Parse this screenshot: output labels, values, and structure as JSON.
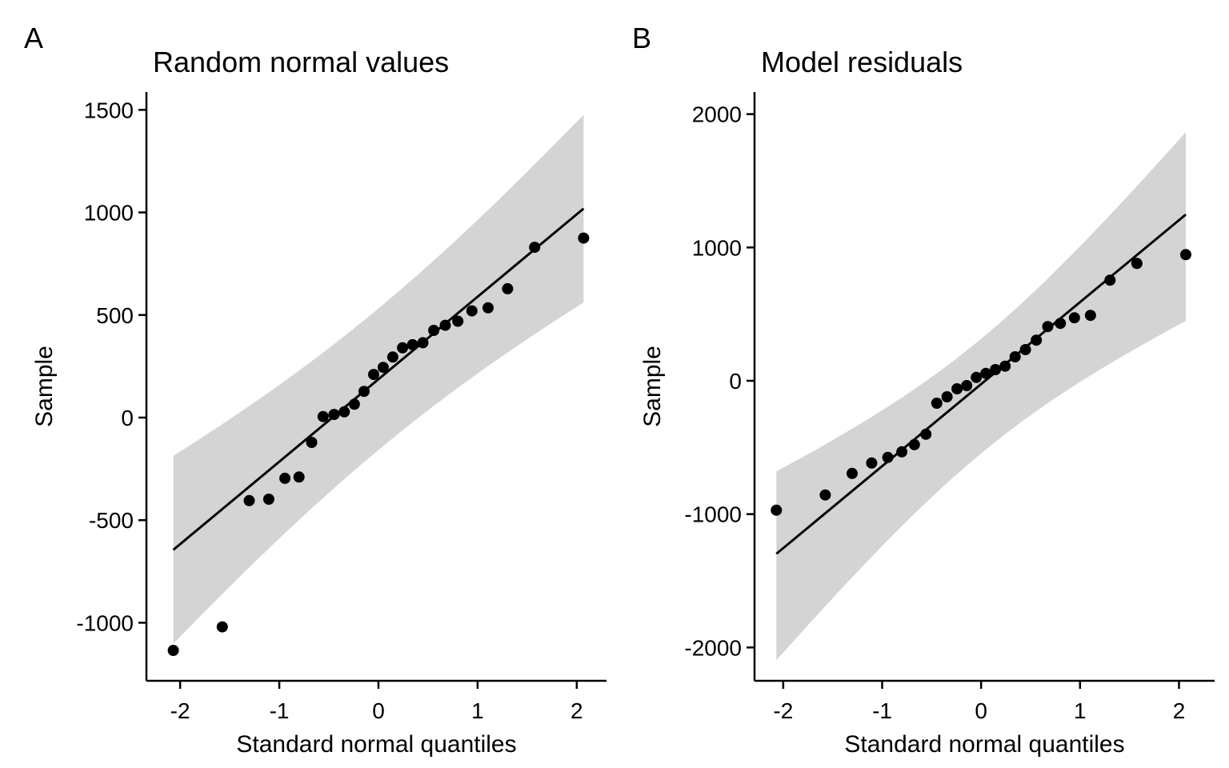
{
  "figure": {
    "background": "#ffffff"
  },
  "colors": {
    "band": "#d4d4d4",
    "line": "#000000",
    "point": "#000000",
    "axis": "#000000",
    "text": "#000000"
  },
  "shared": {
    "xlabel": "Standard normal quantiles",
    "ylabel": "Sample"
  },
  "chart_data": [
    {
      "type": "scatter",
      "tag": "A",
      "title": "Random normal values",
      "xlabel": "Standard normal quantiles",
      "ylabel": "Sample",
      "xlim": [
        -2.34,
        2.3
      ],
      "ylim": [
        -1283,
        1587
      ],
      "x_ticks": [
        {
          "value": -2,
          "label": "-2"
        },
        {
          "value": -1,
          "label": "-1"
        },
        {
          "value": 0,
          "label": "0"
        },
        {
          "value": 1,
          "label": "1"
        },
        {
          "value": 2,
          "label": "2"
        }
      ],
      "y_ticks": [
        {
          "value": 1500,
          "label": "1500"
        },
        {
          "value": 1000,
          "label": "1000"
        },
        {
          "value": 500,
          "label": "500"
        },
        {
          "value": 0,
          "label": "0"
        },
        {
          "value": -500,
          "label": "-500"
        },
        {
          "value": -1000,
          "label": "-1000"
        }
      ],
      "points": {
        "x": [
          -2.069,
          -1.575,
          -1.303,
          -1.106,
          -0.943,
          -0.801,
          -0.674,
          -0.558,
          -0.448,
          -0.344,
          -0.243,
          -0.145,
          -0.048,
          0.048,
          0.145,
          0.243,
          0.344,
          0.448,
          0.558,
          0.674,
          0.801,
          0.943,
          1.106,
          1.303,
          1.575,
          2.069
        ],
        "y": [
          -1135,
          -1020,
          -405,
          -398,
          -296,
          -290,
          -121,
          5,
          15,
          28,
          65,
          128,
          210,
          245,
          295,
          340,
          355,
          365,
          425,
          450,
          470,
          520,
          535,
          628,
          830,
          875
        ]
      },
      "qq_line": {
        "intercept": 187,
        "slope": 402,
        "q_min": -2.069,
        "q_max": 2.069
      },
      "band": {
        "half_width_at_0": 345,
        "curvature": 0.1775,
        "center_offset": 0,
        "q_min": -2.069,
        "q_max": 2.069
      }
    },
    {
      "type": "scatter",
      "tag": "B",
      "title": "Model residuals",
      "xlabel": "Standard normal quantiles",
      "ylabel": "Sample",
      "xlim": [
        -2.29,
        2.36
      ],
      "ylim": [
        -2250,
        2166
      ],
      "x_ticks": [
        {
          "value": -2,
          "label": "-2"
        },
        {
          "value": -1,
          "label": "-1"
        },
        {
          "value": 0,
          "label": "0"
        },
        {
          "value": 1,
          "label": "1"
        },
        {
          "value": 2,
          "label": "2"
        }
      ],
      "y_ticks": [
        {
          "value": 2000,
          "label": "2000"
        },
        {
          "value": 1000,
          "label": "1000"
        },
        {
          "value": 0,
          "label": "0"
        },
        {
          "value": -1000,
          "label": "-1000"
        },
        {
          "value": -2000,
          "label": "-2000"
        }
      ],
      "points": {
        "x": [
          -2.069,
          -1.575,
          -1.303,
          -1.106,
          -0.943,
          -0.801,
          -0.674,
          -0.558,
          -0.448,
          -0.344,
          -0.243,
          -0.145,
          -0.048,
          0.048,
          0.145,
          0.243,
          0.344,
          0.448,
          0.558,
          0.674,
          0.801,
          0.943,
          1.106,
          1.303,
          1.575,
          2.069
        ],
        "y": [
          -970,
          -856,
          -695,
          -617,
          -575,
          -533,
          -479,
          -401,
          -168,
          -120,
          -60,
          -36,
          25,
          55,
          84,
          110,
          180,
          234,
          305,
          407,
          431,
          473,
          491,
          755,
          880,
          946
        ]
      },
      "qq_line": {
        "intercept": -25,
        "slope": 615,
        "q_min": -2.069,
        "q_max": 2.069
      },
      "band": {
        "half_width_at_0": 430,
        "curvature": 0.4,
        "center_offset": -90,
        "q_min": -2.069,
        "q_max": 2.069
      }
    }
  ]
}
